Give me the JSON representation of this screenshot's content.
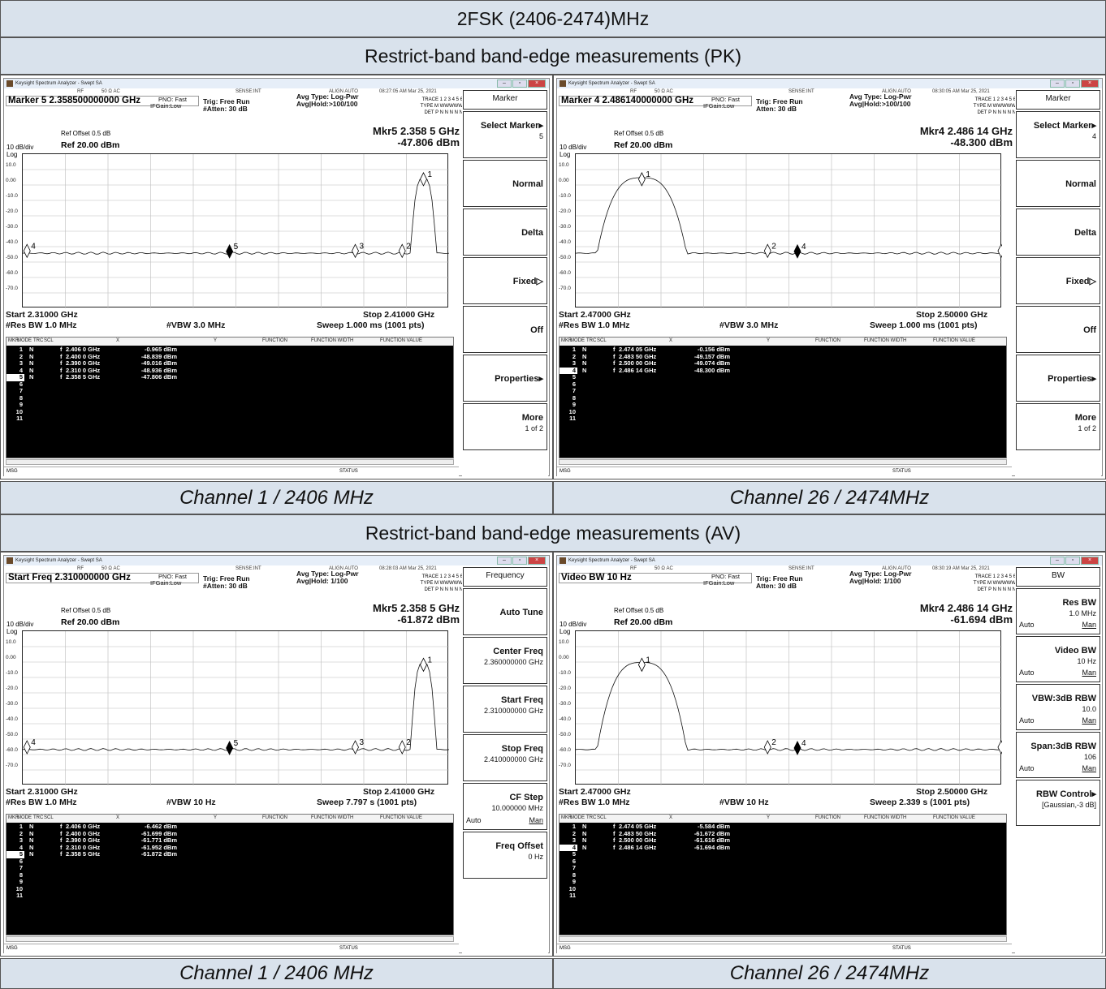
{
  "header": {
    "title": "2FSK (2406-2474)MHz",
    "pk_section": "Restrict-band band-edge measurements (PK)",
    "av_section": "Restrict-band band-edge measurements (AV)"
  },
  "captions": {
    "ch1_pk": "Channel 1 / 2406 MHz",
    "ch26_pk": "Channel 26 / 2474MHz",
    "ch1_av": "Channel 1 / 2406 MHz",
    "ch26_av": "Channel 26 / 2474MHz"
  },
  "common": {
    "app_title": "Keysight Spectrum Analyzer - Swept SA",
    "rf": "RF",
    "ohm": "50 Ω  AC",
    "sense": "SENSE:INT",
    "align": "ALIGN AUTO",
    "pno": "PNO: Fast",
    "ifgain": "IFGain:Low",
    "trig": "Trig: Free Run",
    "atten": "Atten: 30 dB",
    "atten_hash": "#Atten: 30 dB",
    "avg_type": "Avg Type: Log-Pwr",
    "ref_offset": "Ref Offset 0.5 dB",
    "scale": "10 dB/div",
    "ref": "Ref 20.00 dBm",
    "log": "Log",
    "res_bw": "#Res BW 1.0 MHz",
    "msg": "MSG",
    "status": "STATUS",
    "trace_label": "TRACE",
    "type_label": "TYPE",
    "det_label": "DET",
    "trace_nums": "1 2 3 4 5 6",
    "type_vals": "M WWWWW",
    "det_vals": "P N N N N N",
    "col_mkr": "MKR",
    "col_mode": "MODE",
    "col_trc": "TRC",
    "col_scl": "SCL",
    "col_x": "X",
    "col_y": "Y",
    "col_fn": "FUNCTION",
    "col_fnw": "FUNCTION WIDTH",
    "col_fnv": "FUNCTION VALUE",
    "y_labels": [
      "10.0",
      "0.00",
      "-10.0",
      "-20.0",
      "-30.0",
      "-40.0",
      "-50.0",
      "-60.0",
      "-70.0"
    ]
  },
  "screens": [
    {
      "id": "pk1",
      "time": "08:27:05 AM Mar 25, 2021",
      "marker_line": "Marker 5 2.358500000000 GHz",
      "avg_hold": "Avg|Hold:>100/100",
      "mkr_readout": "Mkr5 2.358 5 GHz",
      "mkr_level": "-47.806 dBm",
      "start": "Start 2.31000 GHz",
      "stop": "Stop 2.41000 GHz",
      "vbw": "#VBW 3.0 MHz",
      "sweep": "Sweep  1.000 ms (1001 pts)",
      "atten_key": "atten_hash",
      "selected_row": 5,
      "rows": [
        [
          "1",
          "N",
          "f",
          "2.406 0 GHz",
          "-0.965 dBm"
        ],
        [
          "2",
          "N",
          "f",
          "2.400 0 GHz",
          "-48.839 dBm"
        ],
        [
          "3",
          "N",
          "f",
          "2.390 0 GHz",
          "-49.016 dBm"
        ],
        [
          "4",
          "N",
          "f",
          "2.310 0 GHz",
          "-48.936 dBm"
        ],
        [
          "5",
          "N",
          "f",
          "2.358 5 GHz",
          "-47.806 dBm"
        ],
        [
          "6"
        ],
        [
          "7"
        ],
        [
          "8"
        ],
        [
          "9"
        ],
        [
          "10"
        ],
        [
          "11"
        ]
      ],
      "softkeys": [
        {
          "label": "Marker",
          "kind": "title"
        },
        {
          "label": "Select Marker",
          "sub": "5",
          "arrow": "▸"
        },
        {
          "label": "Normal"
        },
        {
          "label": "Delta"
        },
        {
          "label": "Fixed▷"
        },
        {
          "label": "Off"
        },
        {
          "label": "Properties▸"
        },
        {
          "label": "More",
          "sub": "1 of 2"
        }
      ]
    },
    {
      "id": "pk26",
      "time": "08:30:05 AM Mar 25, 2021",
      "marker_line": "Marker 4 2.486140000000 GHz",
      "avg_hold": "Avg|Hold:>100/100",
      "mkr_readout": "Mkr4 2.486 14 GHz",
      "mkr_level": "-48.300 dBm",
      "start": "Start 2.47000 GHz",
      "stop": "Stop 2.50000 GHz",
      "vbw": "#VBW 3.0 MHz",
      "sweep": "Sweep  1.000 ms (1001 pts)",
      "atten_key": "atten",
      "selected_row": 4,
      "rows": [
        [
          "1",
          "N",
          "f",
          "2.474 05 GHz",
          "-0.156 dBm"
        ],
        [
          "2",
          "N",
          "f",
          "2.483 50 GHz",
          "-49.157 dBm"
        ],
        [
          "3",
          "N",
          "f",
          "2.500 00 GHz",
          "-49.074 dBm"
        ],
        [
          "4",
          "N",
          "f",
          "2.486 14 GHz",
          "-48.300 dBm"
        ],
        [
          "5"
        ],
        [
          "6"
        ],
        [
          "7"
        ],
        [
          "8"
        ],
        [
          "9"
        ],
        [
          "10"
        ],
        [
          "11"
        ]
      ],
      "softkeys": [
        {
          "label": "Marker",
          "kind": "title"
        },
        {
          "label": "Select Marker",
          "sub": "4",
          "arrow": "▸"
        },
        {
          "label": "Normal"
        },
        {
          "label": "Delta"
        },
        {
          "label": "Fixed▷"
        },
        {
          "label": "Off"
        },
        {
          "label": "Properties▸"
        },
        {
          "label": "More",
          "sub": "1 of 2"
        }
      ]
    },
    {
      "id": "av1",
      "time": "08:28:03 AM Mar 25, 2021",
      "marker_line": "Start Freq 2.310000000 GHz",
      "avg_hold": "Avg|Hold: 1/100",
      "mkr_readout": "Mkr5 2.358 5 GHz",
      "mkr_level": "-61.872 dBm",
      "start": "Start 2.31000 GHz",
      "stop": "Stop 2.41000 GHz",
      "vbw": "#VBW 10 Hz",
      "sweep": "Sweep  7.797 s (1001 pts)",
      "atten_key": "atten_hash",
      "selected_row": 5,
      "rows": [
        [
          "1",
          "N",
          "f",
          "2.406 0 GHz",
          "-6.462 dBm"
        ],
        [
          "2",
          "N",
          "f",
          "2.400 0 GHz",
          "-61.699 dBm"
        ],
        [
          "3",
          "N",
          "f",
          "2.390 0 GHz",
          "-61.771 dBm"
        ],
        [
          "4",
          "N",
          "f",
          "2.310 0 GHz",
          "-61.952 dBm"
        ],
        [
          "5",
          "N",
          "f",
          "2.358 5 GHz",
          "-61.872 dBm"
        ],
        [
          "6"
        ],
        [
          "7"
        ],
        [
          "8"
        ],
        [
          "9"
        ],
        [
          "10"
        ],
        [
          "11"
        ]
      ],
      "softkeys": [
        {
          "label": "Frequency",
          "kind": "title"
        },
        {
          "label": "Auto Tune"
        },
        {
          "label": "Center Freq",
          "sub": "2.360000000 GHz"
        },
        {
          "label": "Start Freq",
          "sub": "2.310000000 GHz"
        },
        {
          "label": "Stop Freq",
          "sub": "2.410000000 GHz"
        },
        {
          "label": "CF Step",
          "sub": "10.000000 MHz",
          "auto": "Auto",
          "man": "Man"
        },
        {
          "label": "Freq Offset",
          "sub": "0 Hz"
        }
      ]
    },
    {
      "id": "av26",
      "time": "08:30:19 AM Mar 25, 2021",
      "marker_line": "Video BW 10 Hz",
      "avg_hold": "Avg|Hold: 1/100",
      "mkr_readout": "Mkr4 2.486 14 GHz",
      "mkr_level": "-61.694 dBm",
      "start": "Start 2.47000 GHz",
      "stop": "Stop 2.50000 GHz",
      "vbw": "#VBW 10 Hz",
      "sweep": "Sweep  2.339 s (1001 pts)",
      "atten_key": "atten",
      "selected_row": 4,
      "rows": [
        [
          "1",
          "N",
          "f",
          "2.474 05 GHz",
          "-5.584 dBm"
        ],
        [
          "2",
          "N",
          "f",
          "2.483 50 GHz",
          "-61.672 dBm"
        ],
        [
          "3",
          "N",
          "f",
          "2.500 00 GHz",
          "-61.616 dBm"
        ],
        [
          "4",
          "N",
          "f",
          "2.486 14 GHz",
          "-61.694 dBm"
        ],
        [
          "5"
        ],
        [
          "6"
        ],
        [
          "7"
        ],
        [
          "8"
        ],
        [
          "9"
        ],
        [
          "10"
        ],
        [
          "11"
        ]
      ],
      "softkeys": [
        {
          "label": "BW",
          "kind": "title"
        },
        {
          "label": "Res BW",
          "sub": "1.0 MHz",
          "auto": "Auto",
          "man": "Man"
        },
        {
          "label": "Video BW",
          "sub": "10 Hz",
          "auto": "Auto",
          "man": "Man"
        },
        {
          "label": "VBW:3dB RBW",
          "sub": "10.0",
          "auto": "Auto",
          "man": "Man"
        },
        {
          "label": "Span:3dB RBW",
          "sub": "106",
          "auto": "Auto",
          "man": "Man"
        },
        {
          "label": "RBW Control",
          "sub": "[Gaussian,-3 dB]",
          "arrow": "▸"
        }
      ]
    }
  ]
}
